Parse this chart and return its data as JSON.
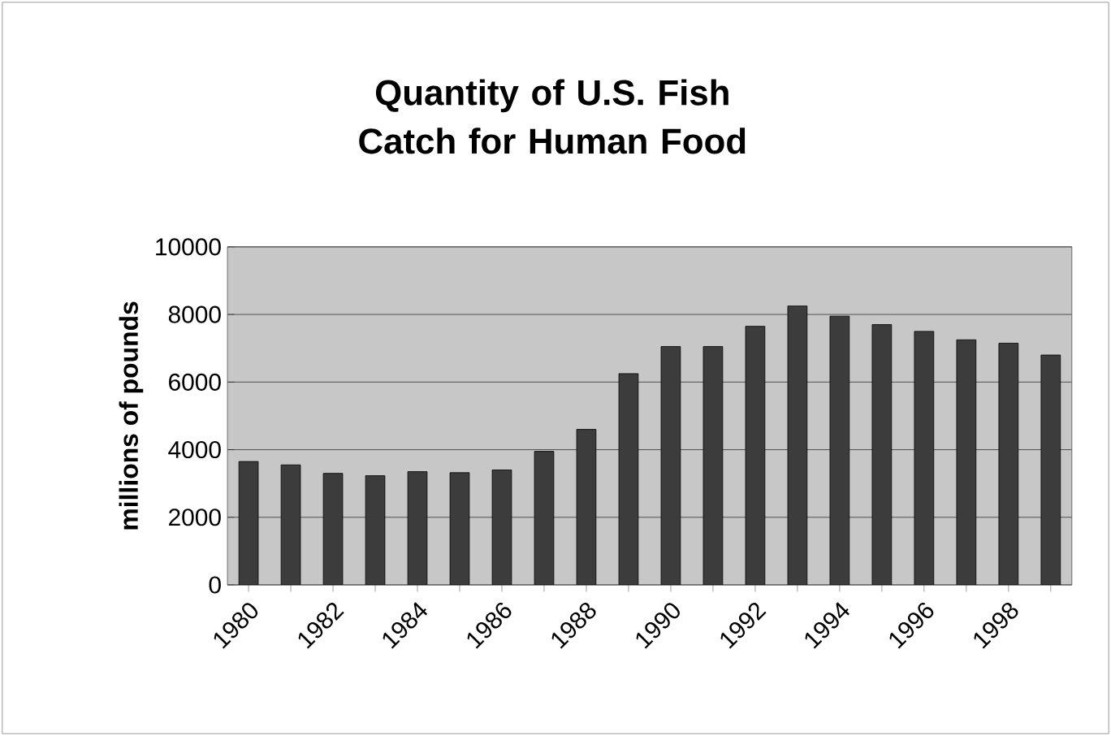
{
  "chart_data": {
    "type": "bar",
    "title": "Quantity of U.S. Fish Catch for Human Food",
    "ylabel": "millions of pounds",
    "categories": [
      "1980",
      null,
      "1982",
      null,
      "1984",
      null,
      "1986",
      null,
      "1988",
      null,
      "1990",
      null,
      "1992",
      null,
      "1994",
      null,
      "1996",
      null,
      "1998",
      null
    ],
    "values": [
      3650,
      3550,
      3300,
      3230,
      3350,
      3320,
      3400,
      3950,
      4600,
      6250,
      7050,
      7050,
      7650,
      8250,
      7950,
      7700,
      7500,
      7250,
      7150,
      6800
    ],
    "color": "#3c3c3c",
    "ylim": [
      0,
      10000
    ],
    "yticks": [
      0,
      2000,
      4000,
      6000,
      8000,
      10000
    ],
    "grid": "y"
  }
}
